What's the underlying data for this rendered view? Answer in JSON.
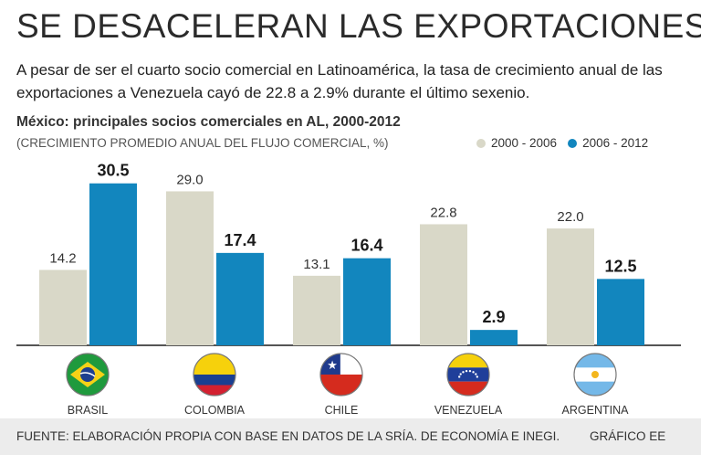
{
  "headline": "SE DESACELERAN LAS EXPORTACIONES",
  "lead": "A pesar de ser el cuarto socio comercial en Latinoamérica, la tasa de crecimiento anual de las exportaciones a Venezuela cayó de 22.8 a 2.9% durante el último sexenio.",
  "colors": {
    "old": "#d9d8c8",
    "new": "#1286be",
    "baseline": "#555555"
  },
  "flag_icons": [
    "brazil-flag-icon",
    "colombia-flag-icon",
    "chile-flag-icon",
    "venezuela-flag-icon",
    "argentina-flag-icon"
  ],
  "chart_data": {
    "type": "bar",
    "title": "México: principales socios comerciales en AL, 2000-2012",
    "subtitle": "(CRECIMIENTO PROMEDIO ANUAL DEL FLUJO COMERCIAL, %)",
    "categories": [
      "BRASIL",
      "COLOMBIA",
      "CHILE",
      "VENEZUELA",
      "ARGENTINA"
    ],
    "series": [
      {
        "name": "2000 - 2006",
        "values": [
          14.2,
          29.0,
          13.1,
          22.8,
          22.0
        ],
        "labels": [
          "14.2",
          "29.0",
          "13.1",
          "22.8",
          "22.0"
        ]
      },
      {
        "name": "2006 - 2012",
        "values": [
          30.5,
          17.4,
          16.4,
          2.9,
          12.5
        ],
        "labels": [
          "30.5",
          "17.4",
          "16.4",
          "2.9",
          "12.5"
        ]
      }
    ],
    "ylim": [
      0,
      32
    ],
    "xlabel": "",
    "ylabel": "",
    "legend_position": "top-right",
    "grid": false
  },
  "source": "FUENTE: ELABORACIÓN PROPIA CON BASE EN DATOS DE LA SRÍA. DE ECONOMÍA E INEGI.",
  "credit": "GRÁFICO EE"
}
